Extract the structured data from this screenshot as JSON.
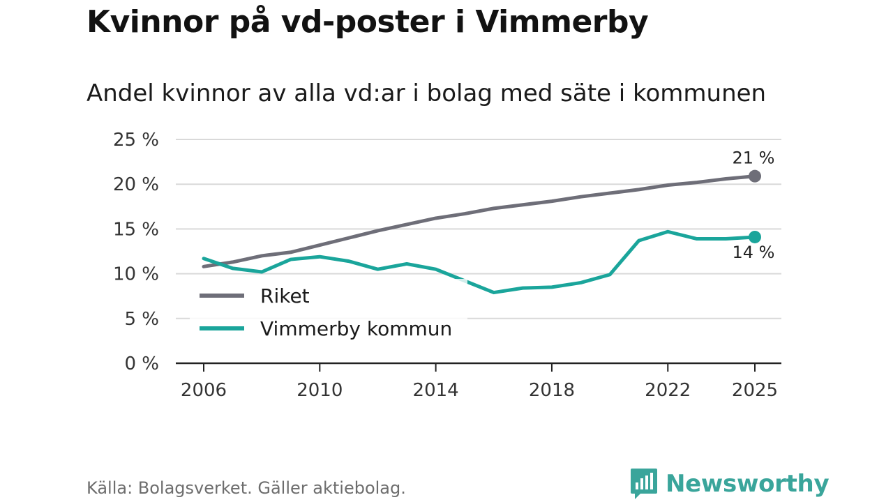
{
  "title": "Kvinnor på vd-poster i Vimmerby",
  "subtitle": "Andel kvinnor av alla vd:ar i bolag med säte i kommunen",
  "source": "Källa: Bolagsverket. Gäller aktiebolag.",
  "brand": "Newsworthy",
  "colors": {
    "riket": "#6e6e78",
    "vimmerby": "#1aa59b",
    "grid": "#d9d9d9",
    "axis": "#222222",
    "brand": "#3aa59b"
  },
  "chart_data": {
    "type": "line",
    "x": [
      2006,
      2007,
      2008,
      2009,
      2010,
      2011,
      2012,
      2013,
      2014,
      2015,
      2016,
      2017,
      2018,
      2019,
      2020,
      2021,
      2022,
      2023,
      2024,
      2025
    ],
    "series": [
      {
        "name": "Riket",
        "values": [
          10.8,
          11.3,
          12.0,
          12.4,
          13.2,
          14.0,
          14.8,
          15.5,
          16.2,
          16.7,
          17.3,
          17.7,
          18.1,
          18.6,
          19.0,
          19.4,
          19.9,
          20.2,
          20.6,
          20.9
        ],
        "end_label": "21 %"
      },
      {
        "name": "Vimmerby kommun",
        "values": [
          11.7,
          10.6,
          10.2,
          11.6,
          11.9,
          11.4,
          10.5,
          11.1,
          10.5,
          9.2,
          7.9,
          8.4,
          8.5,
          9.0,
          9.9,
          13.7,
          14.7,
          13.9,
          13.9,
          14.1
        ],
        "end_label": "14 %"
      }
    ],
    "ylim": [
      0,
      25
    ],
    "yticks": [
      0,
      5,
      10,
      15,
      20,
      25
    ],
    "ytick_labels": [
      "0 %",
      "5 %",
      "10 %",
      "15 %",
      "20 %",
      "25 %"
    ],
    "xticks": [
      2006,
      2010,
      2014,
      2018,
      2022,
      2025
    ],
    "xtick_labels": [
      "2006",
      "2010",
      "2014",
      "2018",
      "2022",
      "2025"
    ],
    "legend": [
      "Riket",
      "Vimmerby kommun"
    ],
    "legend_position": "bottom-left",
    "grid": true,
    "xlabel": "",
    "ylabel": ""
  }
}
